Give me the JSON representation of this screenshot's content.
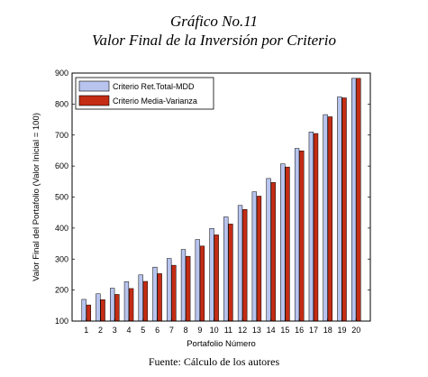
{
  "figure": {
    "title_line1": "Gráfico No.11",
    "title_line2": "Valor Final de la Inversión por Criterio",
    "source": "Fuente: Cálculo de los autores"
  },
  "chart_data": {
    "type": "bar",
    "title": "",
    "xlabel": "Portafolio Número",
    "ylabel": "Valor Final del Portafolio (Valor Inicial = 100)",
    "ylim": [
      100,
      900
    ],
    "yticks": [
      100,
      200,
      300,
      400,
      500,
      600,
      700,
      800,
      900
    ],
    "categories": [
      "1",
      "2",
      "3",
      "4",
      "5",
      "6",
      "7",
      "8",
      "9",
      "10",
      "11",
      "12",
      "13",
      "14",
      "15",
      "16",
      "17",
      "18",
      "19",
      "20"
    ],
    "series": [
      {
        "name": "Criterio Ret.Total-MDD",
        "color": "#b8c4ee",
        "values": [
          170,
          188,
          206,
          227,
          249,
          274,
          302,
          331,
          363,
          399,
          436,
          473,
          517,
          560,
          607,
          657,
          710,
          766,
          823,
          883
        ]
      },
      {
        "name": "Criterio Media-Varianza",
        "color": "#c42c14",
        "values": [
          152,
          169,
          186,
          205,
          228,
          253,
          280,
          309,
          342,
          378,
          413,
          460,
          503,
          547,
          597,
          649,
          705,
          759,
          820,
          883
        ]
      }
    ],
    "grid": false,
    "legend_position": "top-left"
  }
}
